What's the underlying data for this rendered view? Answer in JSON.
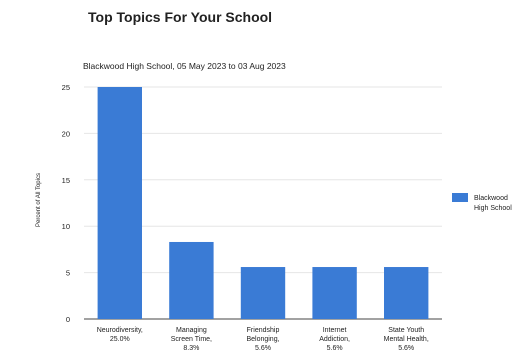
{
  "page": {
    "title": "Top Topics For Your School"
  },
  "chart_data": {
    "type": "bar",
    "title": "Blackwood High School, 05 May 2023 to 03 Aug 2023",
    "xlabel": "",
    "ylabel": "Percent of All Topics",
    "categories": [
      [
        "Neurodiversity,",
        "25.0%"
      ],
      [
        "Managing",
        "Screen Time,",
        "8.3%"
      ],
      [
        "Friendship",
        "Belonging,",
        "5.6%"
      ],
      [
        "Internet",
        "Addiction,",
        "5.6%"
      ],
      [
        "State Youth",
        "Mental Health,",
        "5.6%"
      ]
    ],
    "series": [
      {
        "name": "Blackwood High School",
        "legend_lines": [
          "Blackwood",
          "High School"
        ],
        "values": [
          25.0,
          8.3,
          5.6,
          5.6,
          5.6
        ]
      }
    ],
    "ylim": [
      0,
      25
    ],
    "yticks": [
      "0",
      "5",
      "10",
      "15",
      "20",
      "25"
    ],
    "grid": true,
    "legend_position": "right",
    "colors": {
      "bar": "#3a7bd5",
      "grid": "#e6e6e6",
      "axis": "#444444",
      "text": "#222222"
    }
  }
}
